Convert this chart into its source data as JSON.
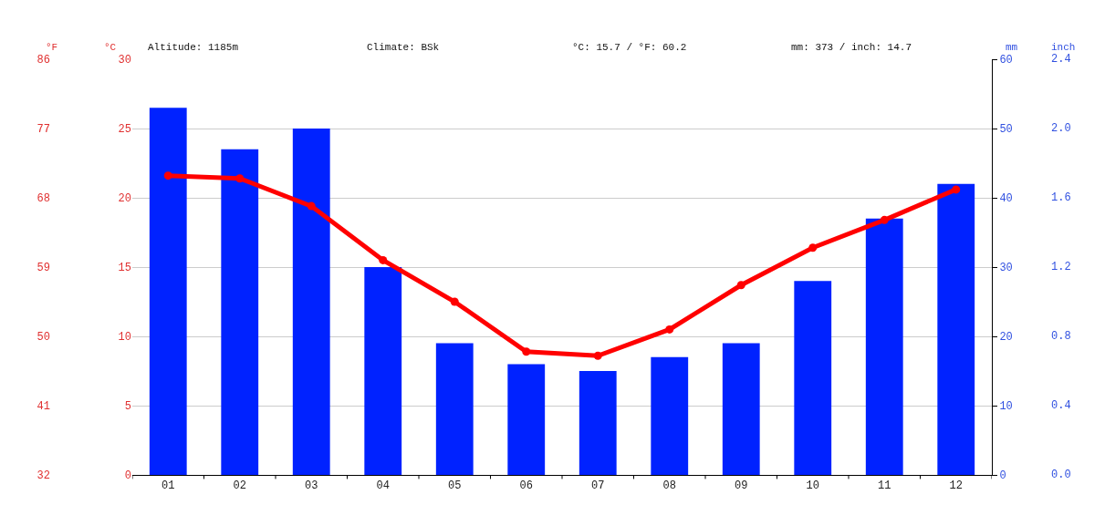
{
  "chart_data": {
    "type": "bar",
    "categories": [
      "01",
      "02",
      "03",
      "04",
      "05",
      "06",
      "07",
      "08",
      "09",
      "10",
      "11",
      "12"
    ],
    "series": [
      {
        "axis": "y2",
        "color": "#0022ff",
        "values": [
          53,
          47,
          50,
          30,
          19,
          16,
          15,
          17,
          19,
          28,
          37,
          42
        ]
      },
      {
        "type": "line",
        "axis": "y",
        "color": "#ff0000",
        "marker": "circle",
        "values": [
          21.6,
          21.4,
          19.4,
          15.5,
          12.5,
          8.9,
          8.6,
          10.5,
          13.7,
          16.4,
          18.4,
          20.6
        ]
      }
    ],
    "ylabel": "°C",
    "ylim": [
      0,
      30
    ],
    "yticks": [
      0,
      5,
      10,
      15,
      20,
      25,
      30
    ],
    "y3label": "°F",
    "y3lim": [
      32,
      86
    ],
    "y3ticks": [
      32,
      41,
      50,
      59,
      68,
      77,
      86
    ],
    "y2label": "mm",
    "y2lim": [
      0,
      60
    ],
    "y2ticks": [
      0,
      10,
      20,
      30,
      40,
      50,
      60
    ],
    "annotations": [
      "Altitude: 1185m",
      "Climate: BSk",
      "°C: 15.7 / °F: 60.2",
      "mm: 373 / inch: 14.7",
      "inch",
      "0.0",
      "0.4",
      "0.8",
      "1.2",
      "1.6",
      "2.0",
      "2.4"
    ],
    "grid": "y"
  }
}
